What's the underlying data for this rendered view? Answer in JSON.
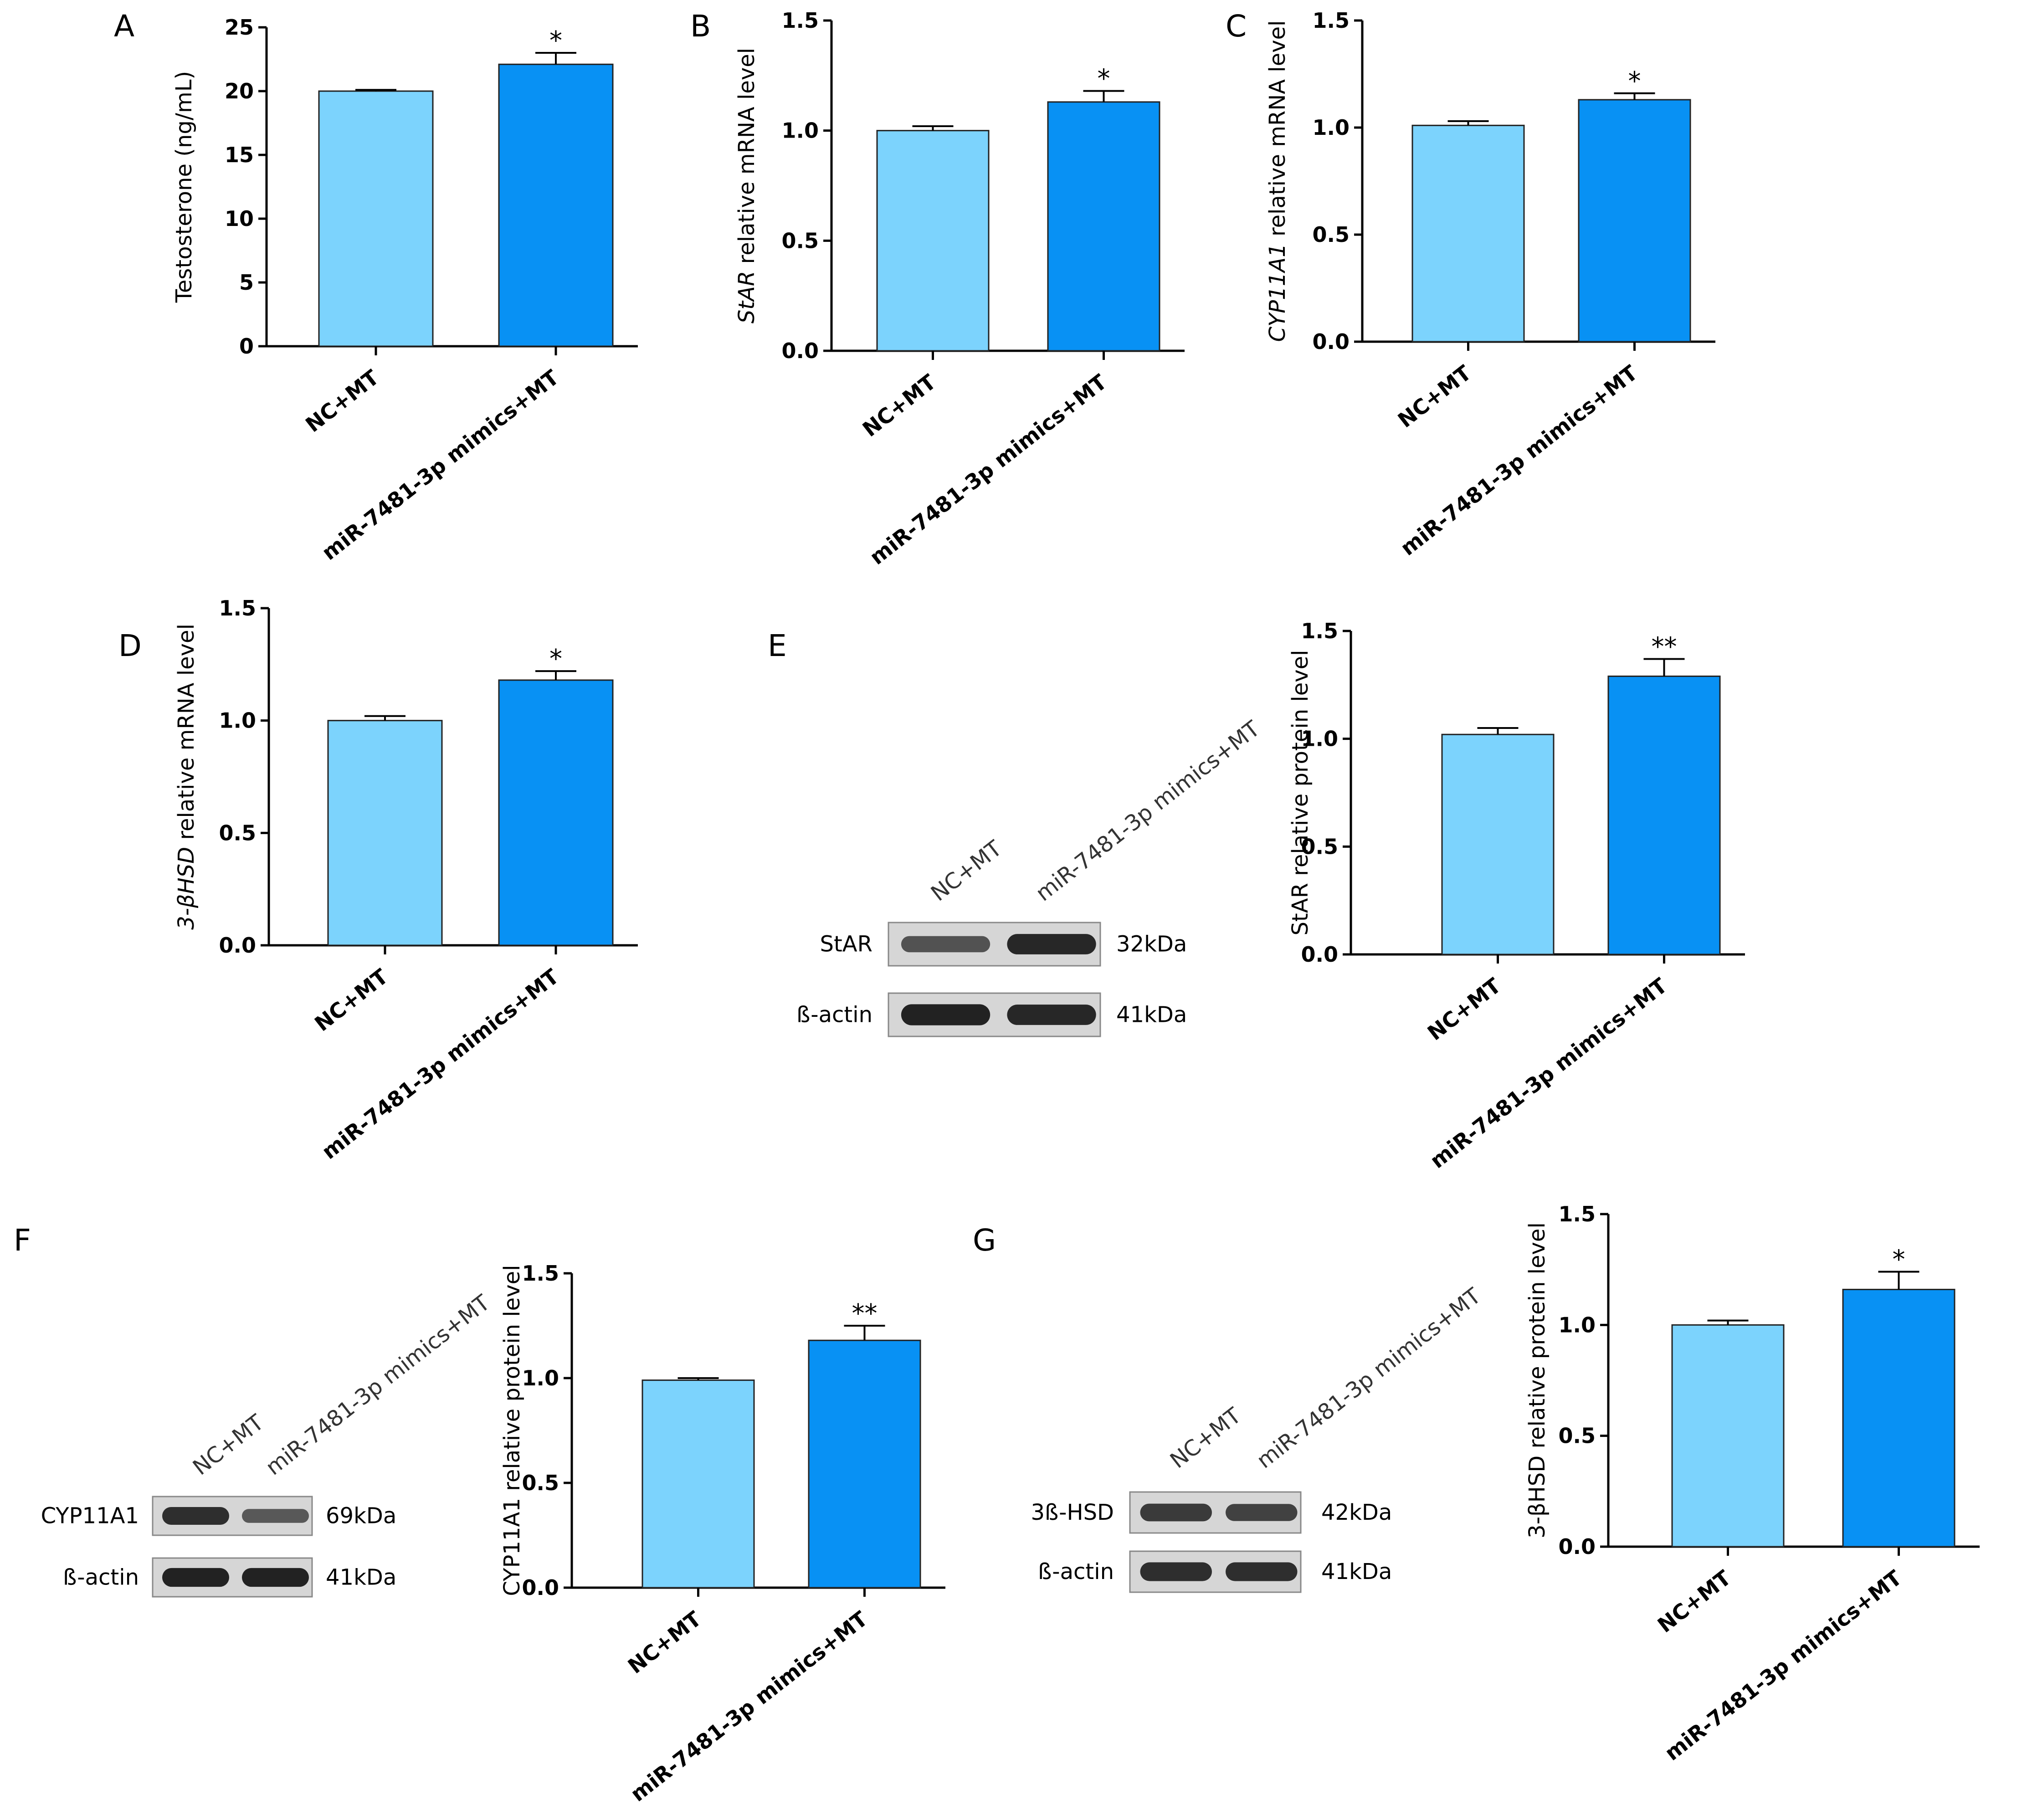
{
  "colors": {
    "control": "#7cd3fd",
    "treatment": "#0891f4",
    "band": "#1c1c1c",
    "membrane": "#d6d6d6"
  },
  "chart_data": [
    {
      "panel": "A",
      "type": "bar",
      "categories": [
        "NC+MT",
        "miR-7481-3p mimics+MT"
      ],
      "values": [
        20.0,
        22.1
      ],
      "errors": [
        0.1,
        0.9
      ],
      "significance": [
        "",
        "*"
      ],
      "ylabel": "Testosterone  (ng/mL)",
      "ylim": [
        0,
        25
      ],
      "yticks": [
        "0",
        "5",
        "10",
        "15",
        "20",
        "25"
      ]
    },
    {
      "panel": "B",
      "type": "bar",
      "categories": [
        "NC+MT",
        "miR-7481-3p mimics+MT"
      ],
      "values": [
        1.0,
        1.13
      ],
      "errors": [
        0.02,
        0.05
      ],
      "significance": [
        "",
        "*"
      ],
      "ylabel_italic": "StAR",
      "ylabel": " relative mRNA level",
      "ylim": [
        0,
        1.5
      ],
      "yticks": [
        "0.0",
        "0.5",
        "1.0",
        "1.5"
      ]
    },
    {
      "panel": "C",
      "type": "bar",
      "categories": [
        "NC+MT",
        "miR-7481-3p mimics+MT"
      ],
      "values": [
        1.01,
        1.13
      ],
      "errors": [
        0.02,
        0.03
      ],
      "significance": [
        "",
        "*"
      ],
      "ylabel_italic": "CYP11A1",
      "ylabel": " relative mRNA level",
      "ylim": [
        0,
        1.5
      ],
      "yticks": [
        "0.0",
        "0.5",
        "1.0",
        "1.5"
      ]
    },
    {
      "panel": "D",
      "type": "bar",
      "categories": [
        "NC+MT",
        "miR-7481-3p mimics+MT"
      ],
      "values": [
        1.0,
        1.18
      ],
      "errors": [
        0.02,
        0.04
      ],
      "significance": [
        "",
        "*"
      ],
      "ylabel_italic": "3-βHSD",
      "ylabel": " relative mRNA level",
      "ylim": [
        0,
        1.5
      ],
      "yticks": [
        "0.0",
        "0.5",
        "1.0",
        "1.5"
      ]
    },
    {
      "panel": "E",
      "type": "bar",
      "categories": [
        "NC+MT",
        "miR-7481-3p mimics+MT"
      ],
      "values": [
        1.02,
        1.29
      ],
      "errors": [
        0.03,
        0.08
      ],
      "significance": [
        "",
        "**"
      ],
      "ylabel": "StAR relative protein level",
      "ylim": [
        0,
        1.5
      ],
      "yticks": [
        "0.0",
        "0.5",
        "1.0",
        "1.5"
      ]
    },
    {
      "panel": "F",
      "type": "bar",
      "categories": [
        "NC+MT",
        "miR-7481-3p mimics+MT"
      ],
      "values": [
        0.99,
        1.18
      ],
      "errors": [
        0.01,
        0.07
      ],
      "significance": [
        "",
        "**"
      ],
      "ylabel": "CYP11A1 relative protein level",
      "ylim": [
        0,
        1.5
      ],
      "yticks": [
        "0.0",
        "0.5",
        "1.0",
        "1.5"
      ]
    },
    {
      "panel": "G",
      "type": "bar",
      "categories": [
        "NC+MT",
        "miR-7481-3p mimics+MT"
      ],
      "values": [
        1.0,
        1.16
      ],
      "errors": [
        0.02,
        0.08
      ],
      "significance": [
        "",
        "*"
      ],
      "ylabel": "3-βHSD relative protein level",
      "ylim": [
        0,
        1.5
      ],
      "yticks": [
        "0.0",
        "0.5",
        "1.0",
        "1.5"
      ]
    }
  ],
  "blots": [
    {
      "panel": "E",
      "lanes": [
        "NC+MT",
        "miR-7481-3p mimics+MT"
      ],
      "rows": [
        {
          "label": "StAR",
          "kda": "32kDa",
          "intensity": [
            0.55,
            0.9
          ]
        },
        {
          "label": "ß-actin",
          "kda": "41kDa",
          "intensity": [
            0.95,
            0.9
          ]
        }
      ]
    },
    {
      "panel": "F",
      "lanes": [
        "NC+MT",
        "miR-7481-3p mimics+MT"
      ],
      "rows": [
        {
          "label": "CYP11A1",
          "kda": "69kDa",
          "intensity": [
            0.85,
            0.5
          ]
        },
        {
          "label": "ß-actin",
          "kda": "41kDa",
          "intensity": [
            0.95,
            0.95
          ]
        }
      ]
    },
    {
      "panel": "G",
      "lanes": [
        "NC+MT",
        "miR-7481-3p mimics+MT"
      ],
      "rows": [
        {
          "label": "3ß-HSD",
          "kda": "42kDa",
          "intensity": [
            0.75,
            0.7
          ]
        },
        {
          "label": "ß-actin",
          "kda": "41kDa",
          "intensity": [
            0.85,
            0.85
          ]
        }
      ]
    }
  ]
}
